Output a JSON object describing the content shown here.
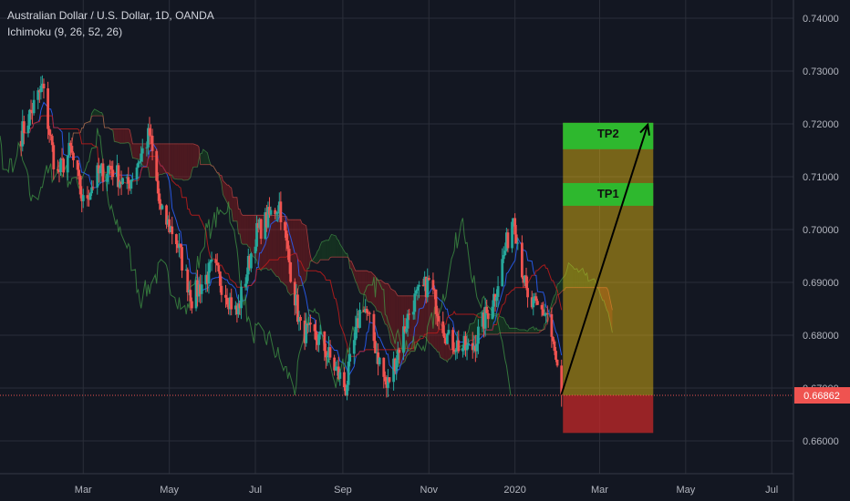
{
  "header": {
    "title": "Australian Dollar / U.S. Dollar, 1D, OANDA",
    "indicator": "Ichimoku (9, 26, 52, 26)"
  },
  "colors": {
    "background": "#131722",
    "grid": "#2a2e39",
    "candle_up": "#26a69a",
    "candle_down": "#ef5350",
    "tenkan": "#2962ff",
    "kijun": "#b71c1c",
    "chikou": "#43a047",
    "cloud_bull": "#1b5e20",
    "cloud_bear": "#b71c1c",
    "tp_zone": "#f1c40f",
    "stop_zone": "#c62828",
    "tp_box": "#2eb82e",
    "price_tag": "#ef5350"
  },
  "chart_data": {
    "type": "candlestick",
    "instrument": "Australian Dollar / U.S. Dollar",
    "interval": "1D",
    "source": "OANDA",
    "x_ticks": [
      "Mar",
      "May",
      "Jul",
      "Sep",
      "Nov",
      "2020",
      "Mar",
      "May",
      "Jul"
    ],
    "y_ticks": [
      "0.74000",
      "0.73000",
      "0.72000",
      "0.71000",
      "0.70000",
      "0.69000",
      "0.68000",
      "0.67000",
      "0.66000"
    ],
    "ylim": [
      0.6575,
      0.7425
    ],
    "grid": true,
    "last_price": "0.66862",
    "price_anchors": [
      [
        "2019-01-16",
        0.718
      ],
      [
        "2019-01-31",
        0.727
      ],
      [
        "2019-02-10",
        0.71
      ],
      [
        "2019-02-20",
        0.715
      ],
      [
        "2019-03-01",
        0.705
      ],
      [
        "2019-03-10",
        0.71
      ],
      [
        "2019-03-20",
        0.712
      ],
      [
        "2019-04-01",
        0.708
      ],
      [
        "2019-04-17",
        0.718
      ],
      [
        "2019-04-25",
        0.703
      ],
      [
        "2019-05-05",
        0.699
      ],
      [
        "2019-05-17",
        0.687
      ],
      [
        "2019-06-01",
        0.693
      ],
      [
        "2019-06-18",
        0.684
      ],
      [
        "2019-07-01",
        0.699
      ],
      [
        "2019-07-18",
        0.705
      ],
      [
        "2019-08-02",
        0.681
      ],
      [
        "2019-08-16",
        0.679
      ],
      [
        "2019-09-03",
        0.67
      ],
      [
        "2019-09-15",
        0.687
      ],
      [
        "2019-10-02",
        0.67
      ],
      [
        "2019-10-20",
        0.686
      ],
      [
        "2019-11-01",
        0.69
      ],
      [
        "2019-11-15",
        0.679
      ],
      [
        "2019-12-01",
        0.677
      ],
      [
        "2019-12-18",
        0.688
      ],
      [
        "2019-12-31",
        0.703
      ],
      [
        "2020-01-10",
        0.686
      ],
      [
        "2020-01-24",
        0.684
      ],
      [
        "2020-02-03",
        0.6686
      ]
    ],
    "trade_setup": {
      "entry": 0.66862,
      "stop": 0.6615,
      "tp1_label": "TP1",
      "tp1_range": [
        0.7045,
        0.7088
      ],
      "tp2_label": "TP2",
      "tp2_range": [
        0.7152,
        0.7202
      ],
      "start_date": "2020-02-04",
      "end_date": "2020-04-08"
    }
  }
}
